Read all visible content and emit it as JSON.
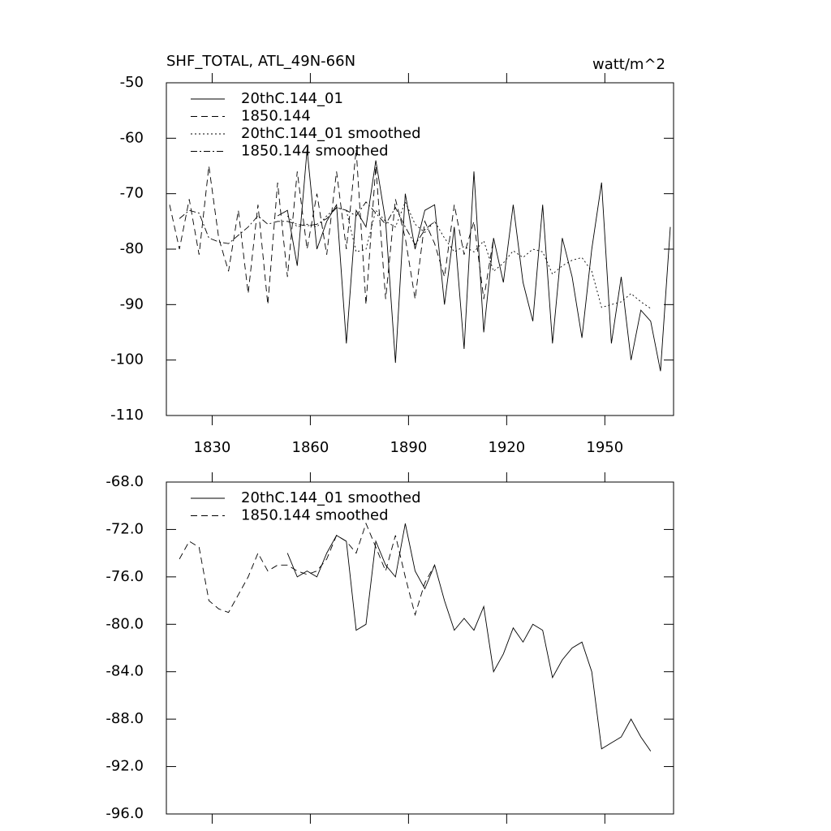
{
  "chart_data": [
    {
      "type": "line",
      "title": "SHF_TOTAL, ATL_49N-66N",
      "unit_label": "watt/m^2",
      "x": [
        1817,
        1820,
        1823,
        1826,
        1829,
        1832,
        1835,
        1838,
        1841,
        1844,
        1847,
        1850,
        1853,
        1856,
        1859,
        1862,
        1865,
        1868,
        1871,
        1874,
        1877,
        1880,
        1883,
        1886,
        1889,
        1892,
        1895,
        1898,
        1901,
        1904,
        1907,
        1910,
        1913,
        1916,
        1919,
        1922,
        1925,
        1928,
        1931,
        1934,
        1937,
        1940,
        1943,
        1946,
        1949,
        1952,
        1955,
        1958,
        1961,
        1964,
        1967,
        1970
      ],
      "xlim": [
        1816,
        1971
      ],
      "xticks": [
        1830,
        1860,
        1890,
        1920,
        1950
      ],
      "show_xtick_labels": true,
      "ylim": [
        -110,
        -50
      ],
      "yticks": [
        -50,
        -60,
        -70,
        -80,
        -90,
        -100,
        -110
      ],
      "legend": "upper left",
      "series": [
        {
          "name": "20thC.144_01",
          "color": "#000000",
          "dash": "solid",
          "values": [
            null,
            null,
            null,
            null,
            null,
            null,
            null,
            null,
            null,
            null,
            null,
            -74,
            -73,
            -83,
            -62,
            -80,
            -75,
            -72,
            -97,
            -73,
            -76,
            -64,
            -75,
            -100.5,
            -70,
            -80,
            -73,
            -72,
            -90,
            -76,
            -98,
            -66,
            -95,
            -78,
            -86,
            -72,
            -86,
            -93,
            -72,
            -97,
            -78,
            -85,
            -96,
            -80,
            -68,
            -97,
            -85,
            -100,
            -91,
            -93,
            -102,
            -76
          ]
        },
        {
          "name": "1850.144",
          "color": "#000000",
          "dash": "dashed",
          "values": [
            -72,
            -80,
            -71,
            -81,
            -65,
            -78,
            -84,
            -73,
            -88,
            -72,
            -90,
            -68,
            -85,
            -66,
            -80,
            -70,
            -81,
            -66,
            -80,
            -62,
            -90,
            -65,
            -89,
            -71,
            -78,
            -89,
            -75,
            -79,
            -85,
            -72,
            -81,
            -75,
            -89,
            -78,
            null,
            null,
            null,
            null,
            null,
            null,
            null,
            null,
            null,
            null,
            null,
            null,
            null,
            null,
            null,
            null,
            null,
            null
          ]
        },
        {
          "name": "20thC.144_01 smoothed",
          "color": "#000000",
          "dash": "dotted",
          "values": [
            null,
            null,
            null,
            null,
            null,
            null,
            null,
            null,
            null,
            null,
            null,
            null,
            -74,
            -76,
            -75.5,
            -76,
            -74,
            -72.5,
            -73,
            -80.5,
            -80,
            -73,
            -75,
            -76,
            -71.5,
            -75.5,
            -77,
            -75,
            -78,
            -80.5,
            -79.5,
            -80.5,
            -78.5,
            -84,
            -82.5,
            -80.3,
            -81.5,
            -80,
            -80.5,
            -84.5,
            -83,
            -82,
            -81.5,
            -84,
            -90.5,
            -90,
            -89.5,
            -88,
            -89.5,
            -90.7,
            null,
            null
          ]
        },
        {
          "name": "1850.144 smoothed",
          "color": "#000000",
          "dash": "dashdot",
          "values": [
            null,
            -74.5,
            -73,
            -73.5,
            -78,
            -78.7,
            -79,
            -77.5,
            -76,
            -74,
            -75.5,
            -75,
            -75,
            -75.5,
            -75.8,
            -75.5,
            -74.5,
            -72.5,
            -73,
            -74,
            -71.5,
            -73.5,
            -75.5,
            -72.5,
            -76,
            -79.2,
            -76.5,
            -75,
            null,
            null,
            null,
            null,
            null,
            null,
            null,
            null,
            null,
            null,
            null,
            null,
            null,
            null,
            null,
            null,
            null,
            null,
            null,
            null,
            null,
            null,
            null,
            null
          ]
        }
      ]
    },
    {
      "type": "line",
      "x": [
        1817,
        1820,
        1823,
        1826,
        1829,
        1832,
        1835,
        1838,
        1841,
        1844,
        1847,
        1850,
        1853,
        1856,
        1859,
        1862,
        1865,
        1868,
        1871,
        1874,
        1877,
        1880,
        1883,
        1886,
        1889,
        1892,
        1895,
        1898,
        1901,
        1904,
        1907,
        1910,
        1913,
        1916,
        1919,
        1922,
        1925,
        1928,
        1931,
        1934,
        1937,
        1940,
        1943,
        1946,
        1949,
        1952,
        1955,
        1958,
        1961,
        1964,
        1967,
        1970
      ],
      "xlim": [
        1816,
        1971
      ],
      "xticks": [
        1830,
        1860,
        1890,
        1920,
        1950
      ],
      "show_xtick_labels": false,
      "ylim": [
        -96,
        -68
      ],
      "yticks": [
        {
          "value": -68,
          "label": "-68.0"
        },
        {
          "value": -72,
          "label": "-72.0"
        },
        {
          "value": -76,
          "label": "-76.0"
        },
        {
          "value": -80,
          "label": "-80.0"
        },
        {
          "value": -84,
          "label": "-84.0"
        },
        {
          "value": -88,
          "label": "-88.0"
        },
        {
          "value": -92,
          "label": "-92.0"
        },
        {
          "value": -96,
          "label": "-96.0"
        }
      ],
      "legend": "upper left",
      "series": [
        {
          "name": "20thC.144_01 smoothed",
          "color": "#000000",
          "dash": "solid",
          "values": [
            null,
            null,
            null,
            null,
            null,
            null,
            null,
            null,
            null,
            null,
            null,
            null,
            -74,
            -76,
            -75.5,
            -76,
            -74,
            -72.5,
            -73,
            -80.5,
            -80,
            -73,
            -75,
            -76,
            -71.5,
            -75.5,
            -77,
            -75,
            -78,
            -80.5,
            -79.5,
            -80.5,
            -78.5,
            -84,
            -82.5,
            -80.3,
            -81.5,
            -80,
            -80.5,
            -84.5,
            -83,
            -82,
            -81.5,
            -84,
            -90.5,
            -90,
            -89.5,
            -88,
            -89.5,
            -90.7,
            null,
            null
          ]
        },
        {
          "name": "1850.144 smoothed",
          "color": "#000000",
          "dash": "dashed",
          "values": [
            null,
            -74.5,
            -73,
            -73.5,
            -78,
            -78.7,
            -79,
            -77.5,
            -76,
            -74,
            -75.5,
            -75,
            -75,
            -75.5,
            -75.8,
            -75.5,
            -74.5,
            -72.5,
            -73,
            -74,
            -71.5,
            -73.5,
            -75.5,
            -72.5,
            -76,
            -79.2,
            -76.5,
            -75,
            null,
            null,
            null,
            null,
            null,
            null,
            null,
            null,
            null,
            null,
            null,
            null,
            null,
            null,
            null,
            null,
            null,
            null,
            null,
            null,
            null,
            null,
            null,
            null
          ]
        }
      ]
    }
  ]
}
